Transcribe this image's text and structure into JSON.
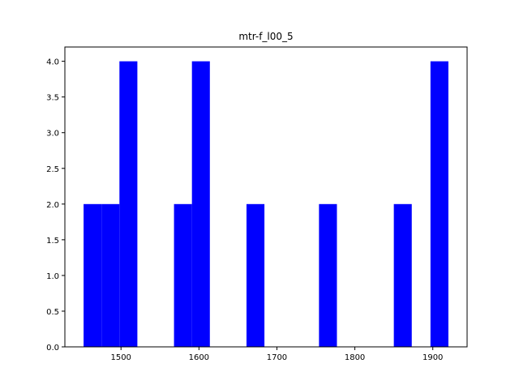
{
  "chart_data": {
    "type": "bar",
    "title": "mtr-f_l00_5",
    "xlabel": "",
    "ylabel": "",
    "xlim": [
      1428,
      1944
    ],
    "ylim": [
      0,
      4.2
    ],
    "grid": false,
    "bar_color": "#0000ff",
    "bins": [
      {
        "x0": 1452,
        "x1": 1475,
        "count": 2
      },
      {
        "x0": 1475,
        "x1": 1498,
        "count": 2
      },
      {
        "x0": 1498,
        "x1": 1521,
        "count": 4
      },
      {
        "x0": 1568,
        "x1": 1591,
        "count": 2
      },
      {
        "x0": 1591,
        "x1": 1614,
        "count": 4
      },
      {
        "x0": 1661,
        "x1": 1684,
        "count": 2
      },
      {
        "x0": 1754,
        "x1": 1777,
        "count": 2
      },
      {
        "x0": 1850,
        "x1": 1873,
        "count": 2
      },
      {
        "x0": 1897,
        "x1": 1920,
        "count": 4
      }
    ],
    "x_ticks": [
      1500,
      1600,
      1700,
      1800,
      1900
    ],
    "x_tick_labels": [
      "1500",
      "1600",
      "1700",
      "1800",
      "1900"
    ],
    "y_ticks": [
      0,
      0.5,
      1.0,
      1.5,
      2.0,
      2.5,
      3.0,
      3.5,
      4.0
    ],
    "y_tick_labels": [
      "0.0",
      "0.5",
      "1.0",
      "1.5",
      "2.0",
      "2.5",
      "3.0",
      "3.5",
      "4.0"
    ]
  }
}
